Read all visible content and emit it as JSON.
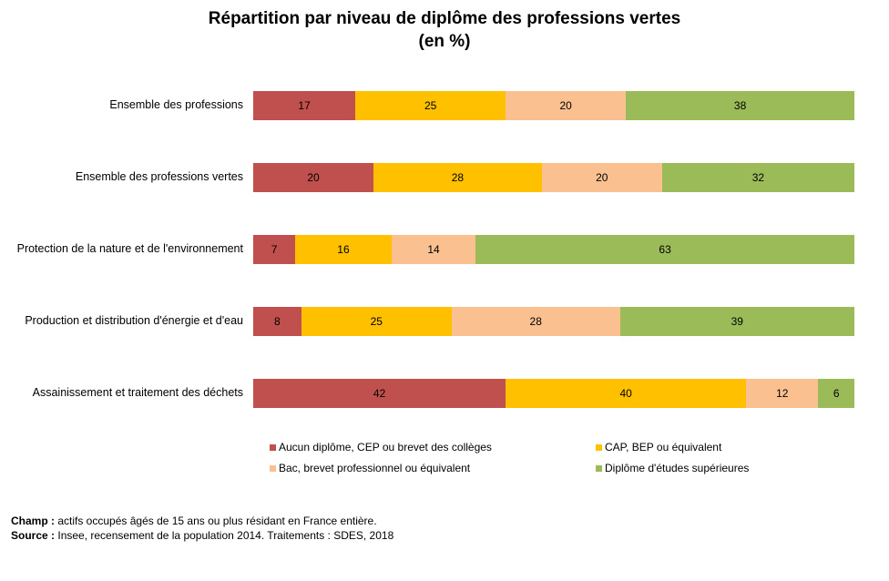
{
  "chart_data": {
    "type": "bar",
    "orientation": "horizontal",
    "stacked": true,
    "title": "Répartition par niveau de diplôme des professions vertes",
    "subtitle": "(en %)",
    "categories": [
      "Ensemble des professions",
      "Ensemble des professions vertes",
      "Protection de la nature et de l'environnement",
      "Production et distribution d'énergie et d'eau",
      "Assainissement et traitement des déchets"
    ],
    "series": [
      {
        "name": "Aucun diplôme, CEP ou brevet des collèges",
        "color": "#c0504d",
        "values": [
          17,
          20,
          7,
          8,
          42
        ]
      },
      {
        "name": "CAP, BEP ou équivalent",
        "color": "#ffc000",
        "values": [
          25,
          28,
          16,
          25,
          40
        ]
      },
      {
        "name": "Bac, brevet professionnel ou équivalent",
        "color": "#fac090",
        "values": [
          20,
          20,
          14,
          28,
          12
        ]
      },
      {
        "name": "Diplôme d'études supérieures",
        "color": "#9bbb59",
        "values": [
          38,
          32,
          63,
          39,
          6
        ]
      }
    ],
    "xlim": [
      0,
      100
    ],
    "legend_position": "bottom",
    "grid": false
  },
  "notes": {
    "champ_label": "Champ :",
    "champ_text": "actifs occupés âgés de 15 ans ou plus résidant en France entière.",
    "source_label": "Source :",
    "source_text": "Insee, recensement de la population 2014. Traitements : SDES, 2018"
  }
}
